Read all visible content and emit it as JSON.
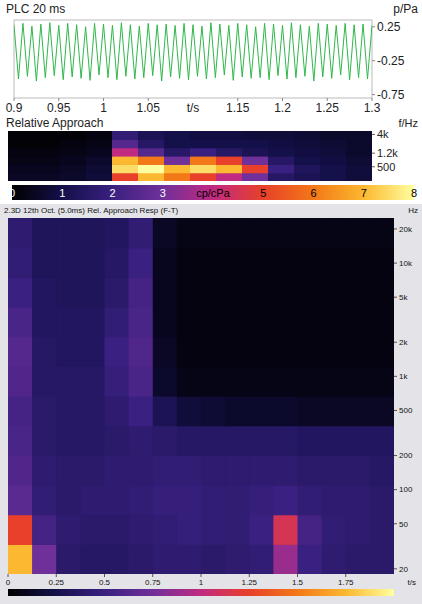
{
  "chart_data": [
    {
      "type": "line",
      "title": "PLC 20 ms",
      "x_label": "t/s",
      "y_label": "p/Pa",
      "color": "#2fb84a",
      "x": [
        0.9,
        0.905,
        0.91,
        0.915,
        0.92,
        0.925,
        0.93,
        0.935,
        0.94,
        0.945,
        0.95,
        0.955,
        0.96,
        0.965,
        0.97,
        0.975,
        0.98,
        0.985,
        0.99,
        0.995,
        1,
        1.005,
        1.01,
        1.015,
        1.02,
        1.025,
        1.03,
        1.035,
        1.04,
        1.045,
        1.05,
        1.055,
        1.06,
        1.065,
        1.07,
        1.075,
        1.08,
        1.085,
        1.09,
        1.095,
        1.1,
        1.105,
        1.11,
        1.115,
        1.12,
        1.125,
        1.13,
        1.135,
        1.14,
        1.145,
        1.15,
        1.155,
        1.16,
        1.165,
        1.17,
        1.175,
        1.18,
        1.185,
        1.19,
        1.195,
        1.2,
        1.205,
        1.21,
        1.215,
        1.22,
        1.225,
        1.23,
        1.235,
        1.24,
        1.245,
        1.25,
        1.255,
        1.26,
        1.265,
        1.27,
        1.275,
        1.28,
        1.285,
        1.29,
        1.295,
        1.3
      ],
      "values": [
        0.28,
        -0.52,
        0.3,
        -0.48,
        0.26,
        -0.55,
        0.29,
        -0.5,
        0.31,
        -0.47,
        0.27,
        -0.53,
        0.3,
        -0.49,
        0.28,
        -0.51,
        0.25,
        -0.54,
        0.3,
        -0.46,
        0.29,
        -0.5,
        0.27,
        -0.53,
        0.31,
        -0.48,
        0.28,
        -0.52,
        0.26,
        -0.5,
        0.3,
        -0.47,
        0.28,
        -0.55,
        0.29,
        -0.49,
        0.27,
        -0.51,
        0.3,
        -0.53,
        0.28,
        -0.48,
        0.26,
        -0.52,
        0.31,
        -0.5,
        0.29,
        -0.46,
        0.27,
        -0.54,
        0.3,
        -0.49,
        0.28,
        -0.51,
        0.25,
        -0.5,
        0.3,
        -0.53,
        0.29,
        -0.47,
        0.27,
        -0.52,
        0.31,
        -0.5,
        0.28,
        -0.48,
        0.26,
        -0.55,
        0.3,
        -0.49,
        0.29,
        -0.51,
        0.27,
        -0.46,
        0.3,
        -0.53,
        0.28,
        -0.5,
        0.29,
        -0.52,
        0.27
      ],
      "xlim": [
        0.9,
        1.3
      ],
      "xticks": [
        0.9,
        0.95,
        1,
        1.05,
        1.15,
        1.2,
        1.25,
        1.3
      ],
      "ylim": [
        -0.8,
        0.35
      ],
      "yticks": [
        0.25,
        -0.25,
        -0.75
      ]
    },
    {
      "type": "heatmap",
      "title": "Relative Approach",
      "y_label": "f/Hz",
      "log": "y",
      "tick_labels": "y",
      "ylim": [
        200,
        5000
      ],
      "yticks": [
        {
          "value": 4000,
          "label": "4k"
        },
        {
          "value": 1200,
          "label": "1.2k"
        },
        500
      ],
      "cells": [
        [
          0.5,
          0.5,
          0.6,
          0.8,
          5,
          7,
          6,
          5,
          4,
          3,
          1.5,
          1.2,
          1,
          0.8
        ],
        [
          0.4,
          0.4,
          0.5,
          0.7,
          7.5,
          8,
          7,
          7.5,
          7,
          5,
          2,
          1.3,
          1,
          0.8
        ],
        [
          0.3,
          0.3,
          0.4,
          0.6,
          7,
          6,
          3,
          6,
          5,
          3,
          1.5,
          1,
          0.9,
          0.7
        ],
        [
          0.2,
          0.2,
          0.3,
          0.4,
          4,
          2.5,
          1.5,
          2,
          1.5,
          1.2,
          1,
          0.9,
          0.8,
          0.6
        ],
        [
          0.1,
          0.1,
          0.2,
          0.3,
          2.5,
          1.5,
          1,
          1,
          1,
          1,
          0.9,
          0.8,
          0.7,
          0.6
        ],
        [
          0.1,
          0.1,
          0.1,
          0.2,
          1.8,
          1.2,
          1,
          0.9,
          0.9,
          0.8,
          0.8,
          0.7,
          0.6,
          0.6
        ]
      ],
      "z_label": "cp/cPa",
      "zlim": [
        0,
        8
      ],
      "zticks": [
        0,
        1,
        2,
        3,
        5,
        6,
        7,
        8
      ]
    },
    {
      "type": "heatmap",
      "title": "2.3D 12th Oct. (5.0ms) Rel. Approach Resp (F-T)",
      "x_label": "t/s",
      "y_label": "Hz",
      "log": "y",
      "xlim": [
        0,
        2
      ],
      "xticks": [
        0,
        0.25,
        0.5,
        0.75,
        1,
        1.25,
        1.5,
        1.75
      ],
      "ylim": [
        18,
        25000
      ],
      "yticks": [
        {
          "value": 20000,
          "label": "20k"
        },
        {
          "value": 10000,
          "label": "10k"
        },
        {
          "value": 5000,
          "label": "5k"
        },
        {
          "value": 2000,
          "label": "2k"
        },
        {
          "value": 1000,
          "label": "1k"
        },
        500,
        200,
        100,
        50,
        20
      ],
      "cells": [
        [
          7,
          3,
          1.6,
          1.5,
          1.5,
          1.6,
          1.7,
          1.7,
          1.6,
          1.7,
          1.8,
          3.5,
          2,
          1.7,
          1.6,
          1.6
        ],
        [
          5,
          2.2,
          1.7,
          1.6,
          1.6,
          1.7,
          1.8,
          1.9,
          1.8,
          1.8,
          2,
          4.5,
          2.2,
          1.8,
          1.7,
          1.6
        ],
        [
          2.6,
          1.8,
          1.6,
          1.7,
          1.7,
          1.8,
          1.9,
          1.9,
          1.8,
          1.8,
          1.9,
          2,
          1.8,
          1.7,
          1.7,
          1.6
        ],
        [
          2.4,
          1.7,
          1.6,
          1.6,
          1.7,
          1.7,
          1.8,
          1.8,
          1.7,
          1.7,
          1.7,
          1.7,
          1.6,
          1.6,
          1.6,
          1.5
        ],
        [
          2.3,
          1.6,
          1.5,
          1.5,
          1.6,
          1.7,
          1.6,
          1.5,
          1.5,
          1.5,
          1.5,
          1.5,
          1.4,
          1.4,
          1.4,
          1.4
        ],
        [
          2.2,
          1.6,
          1.5,
          1.5,
          1.7,
          2,
          1.2,
          0.8,
          0.7,
          0.6,
          0.6,
          0.6,
          0.5,
          0.5,
          0.5,
          0.5
        ],
        [
          2.4,
          1.5,
          1.5,
          1.5,
          1.9,
          2.3,
          0.6,
          0.3,
          0.3,
          0.3,
          0.3,
          0.3,
          0.3,
          0.3,
          0.3,
          0.3
        ],
        [
          2.5,
          1.5,
          1.4,
          1.4,
          2,
          2.4,
          0.5,
          0.2,
          0.2,
          0.2,
          0.2,
          0.2,
          0.2,
          0.2,
          0.2,
          0.2
        ],
        [
          2.3,
          1.4,
          1.4,
          1.4,
          1.8,
          2.3,
          0.4,
          0.2,
          0.2,
          0.2,
          0.2,
          0.2,
          0.2,
          0.2,
          0.2,
          0.2
        ],
        [
          2,
          1.4,
          1.3,
          1.3,
          1.6,
          2.2,
          0.4,
          0.2,
          0.2,
          0.2,
          0.2,
          0.2,
          0.2,
          0.2,
          0.2,
          0.2
        ],
        [
          1.8,
          1.3,
          1.3,
          1.3,
          1.5,
          2,
          0.4,
          0.2,
          0.2,
          0.2,
          0.2,
          0.2,
          0.2,
          0.2,
          0.2,
          0.2
        ],
        [
          1.7,
          1.3,
          1.3,
          1.3,
          1.4,
          1.8,
          0.5,
          0.3,
          0.3,
          0.3,
          0.3,
          0.3,
          0.3,
          0.3,
          0.3,
          0.3
        ]
      ],
      "zlim": [
        0,
        8
      ]
    }
  ]
}
